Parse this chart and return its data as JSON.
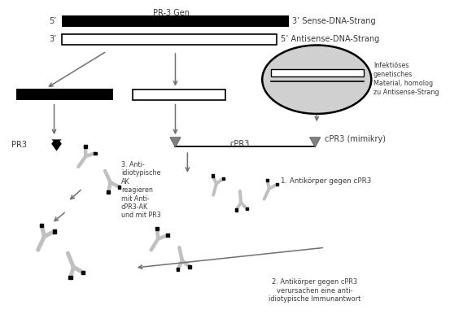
{
  "title": "PR-3 Gen",
  "sense_label_left": "5’",
  "sense_label_right": "3’ Sense-DNA-Strang",
  "antisense_label_left": "3’",
  "antisense_label_right": "5’ Antisense-DNA-Strang",
  "infectious_label": "Infektiöses\ngenetisches\nMaterial, homolog\nzu Antisense-Strang",
  "cpr3_label": "cPR3",
  "cpr3_mimikry_label": "cPR3 (mimikry)",
  "anti1_label": "1. Antikörper gegen cPR3",
  "anti2_label": "2. Antikörper gegen cPR3\nverursachen eine anti-\nidiotypische Immunantwort",
  "anti3_label": "3. Anti-\nidiotypische\nAK\nreagieren\nmit Anti-\ncPR3-AK\nund mit PR3",
  "pr3_label": "PR3",
  "bg_color": "#ffffff",
  "black_color": "#000000",
  "gray_ab": "#c0c0c0",
  "text_color": "#3a3a3a",
  "arrow_color": "#707070",
  "tri_color": "#808080",
  "cell_fill": "#d0d0d0"
}
